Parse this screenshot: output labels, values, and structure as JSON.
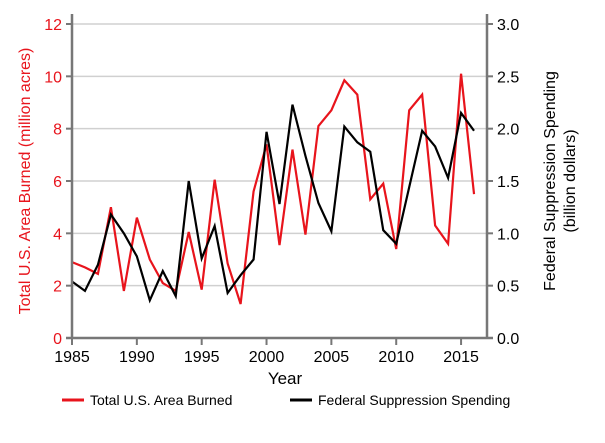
{
  "chart_data": {
    "type": "line",
    "xlabel": "Year",
    "ylabel_left": "Total U.S. Area Burned (million acres)",
    "ylabel_right_lines": [
      "Federal Suppression Spending",
      "(billion dollars)"
    ],
    "xlim": [
      1985,
      2017
    ],
    "ylim_left": [
      0,
      12
    ],
    "ylim_right": [
      0,
      3
    ],
    "xticks": [
      1985,
      1990,
      1995,
      2000,
      2005,
      2010,
      2015
    ],
    "yticks_left": [
      0,
      2,
      4,
      6,
      8,
      10,
      12
    ],
    "yticks_right": [
      "0.0",
      "0.5",
      "1.0",
      "1.5",
      "2.0",
      "2.5",
      "3.0"
    ],
    "grid": "horizontal",
    "legend_position": "bottom",
    "x": [
      1985,
      1986,
      1987,
      1988,
      1989,
      1990,
      1991,
      1992,
      1993,
      1994,
      1995,
      1996,
      1997,
      1998,
      1999,
      2000,
      2001,
      2002,
      2003,
      2004,
      2005,
      2006,
      2007,
      2008,
      2009,
      2010,
      2011,
      2012,
      2013,
      2014,
      2015,
      2016
    ],
    "series": [
      {
        "name": "Total U.S. Area Burned",
        "axis": "left",
        "color": "#e8141c",
        "values": [
          2.9,
          2.7,
          2.45,
          5.0,
          1.8,
          4.6,
          3.0,
          2.1,
          1.8,
          4.05,
          1.85,
          6.05,
          2.85,
          1.3,
          5.6,
          7.4,
          3.55,
          7.2,
          3.95,
          8.1,
          8.7,
          9.85,
          9.3,
          5.3,
          5.9,
          3.4,
          8.7,
          9.3,
          4.3,
          3.6,
          10.1,
          5.5
        ]
      },
      {
        "name": "Federal Suppression Spending",
        "axis": "right",
        "color": "#000000",
        "values": [
          0.54,
          0.45,
          0.7,
          1.18,
          1.0,
          0.78,
          0.36,
          0.64,
          0.4,
          1.5,
          0.76,
          1.07,
          0.43,
          0.6,
          0.75,
          1.97,
          1.28,
          2.23,
          1.74,
          1.29,
          1.02,
          2.02,
          1.87,
          1.78,
          1.03,
          0.9,
          1.44,
          1.98,
          1.83,
          1.53,
          2.15,
          1.98
        ]
      }
    ]
  }
}
